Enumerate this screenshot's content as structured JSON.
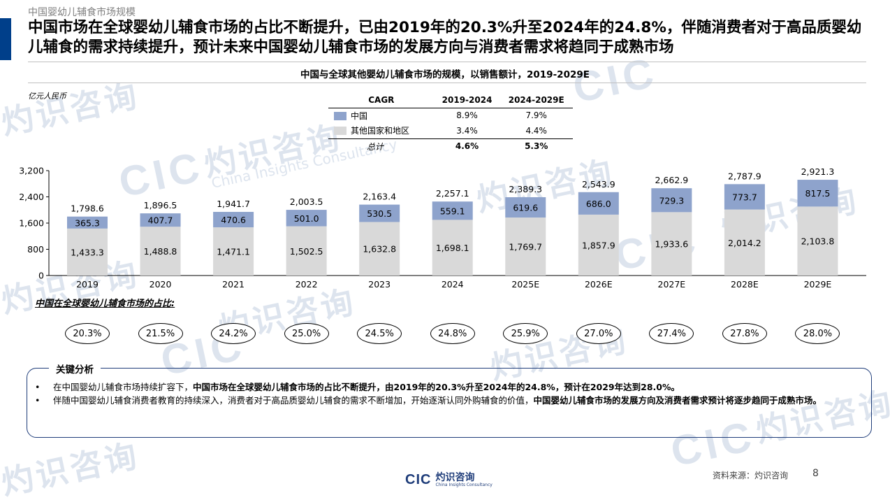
{
  "header": {
    "section": "中国婴幼儿辅食市场规模",
    "title": "中国市场在全球婴幼儿辅食市场的占比不断提升，已由2019年的20.3%升至2024年的24.8%，伴随消费者对于高品质婴幼儿辅食的需求持续提升，预计未来中国婴幼儿辅食市场的发展方向与消费者需求将趋同于成熟市场"
  },
  "chart_title": "中国与全球其他婴幼儿辅食市场的规模，以销售额计，2019-2029E",
  "unit": "亿元人民币",
  "cagr_table": {
    "headers": [
      "CAGR",
      "2019-2024",
      "2024-2029E"
    ],
    "rows": [
      {
        "label": "中国",
        "c1": "8.9%",
        "c2": "7.9%",
        "color": "#8ea3cc"
      },
      {
        "label": "其他国家和地区",
        "c1": "3.4%",
        "c2": "4.4%",
        "color": "#d9d9d9"
      }
    ],
    "total": {
      "label": "总计",
      "c1": "4.6%",
      "c2": "5.3%"
    }
  },
  "chart_data": {
    "type": "bar",
    "stacked": true,
    "categories": [
      "2019",
      "2020",
      "2021",
      "2022",
      "2023",
      "2024",
      "2025E",
      "2026E",
      "2027E",
      "2028E",
      "2029E"
    ],
    "series": [
      {
        "name": "其他国家和地区",
        "color": "#d9d9d9",
        "values": [
          1433.3,
          1488.8,
          1471.1,
          1502.5,
          1632.8,
          1698.1,
          1769.7,
          1857.9,
          1933.6,
          2014.2,
          2103.8
        ],
        "labels": [
          "1,433.3",
          "1,488.8",
          "1,471.1",
          "1,502.5",
          "1,632.8",
          "1,698.1",
          "1,769.7",
          "1,857.9",
          "1,933.6",
          "2,014.2",
          "2,103.8"
        ]
      },
      {
        "name": "中国",
        "color": "#8ea3cc",
        "values": [
          365.3,
          407.7,
          470.6,
          501.0,
          530.5,
          559.1,
          619.6,
          686.0,
          729.3,
          773.7,
          817.5
        ],
        "labels": [
          "365.3",
          "407.7",
          "470.6",
          "501.0",
          "530.5",
          "559.1",
          "619.6",
          "686.0",
          "729.3",
          "773.7",
          "817.5"
        ]
      }
    ],
    "totals": [
      "1,798.6",
      "1,896.5",
      "1,941.7",
      "2,003.5",
      "2,163.4",
      "2,257.1",
      "2,389.3",
      "2,543.9",
      "2,662.9",
      "2,787.9",
      "2,921.3"
    ],
    "yticks": [
      0,
      800,
      1600,
      2400,
      3200
    ],
    "ytick_labels": [
      "0",
      "800",
      "1,600",
      "2,400",
      "3,200"
    ],
    "ylim": [
      0,
      3200
    ],
    "ylabel": "亿元人民币",
    "grid": false
  },
  "share": {
    "label": "中国在全球婴幼儿辅食市场的占比:",
    "values": [
      "20.3%",
      "21.5%",
      "24.2%",
      "25.0%",
      "24.5%",
      "24.8%",
      "25.9%",
      "27.0%",
      "27.4%",
      "27.8%",
      "28.0%"
    ]
  },
  "analysis": {
    "title": "关键分析",
    "bullet1": {
      "normal": "在中国婴幼儿辅食市场持续扩容下，",
      "bold": "中国市场在全球婴幼儿辅食市场的占比不断提升，由2019年的20.3%升至2024年的24.8%，预计在2029年达到28.0%。"
    },
    "bullet2": {
      "normal": "伴随中国婴幼儿辅食消费者教育的持续深入，消费者对于高品质婴幼儿辅食的需求不断增加，开始逐渐认同外购辅食的价值，",
      "bold": "中国婴幼儿辅食市场的发展方向及消费者需求预计将逐步趋同于成熟市场。"
    }
  },
  "footer": {
    "logo_mark": "CIC",
    "logo_cn": "灼识咨询",
    "logo_en": "China Insights Consultancy",
    "source": "资料来源：灼识咨询",
    "page": "8"
  },
  "watermark": {
    "cn": "灼识咨询",
    "en": "China Insights Consultancy",
    "mark": "CIC"
  }
}
